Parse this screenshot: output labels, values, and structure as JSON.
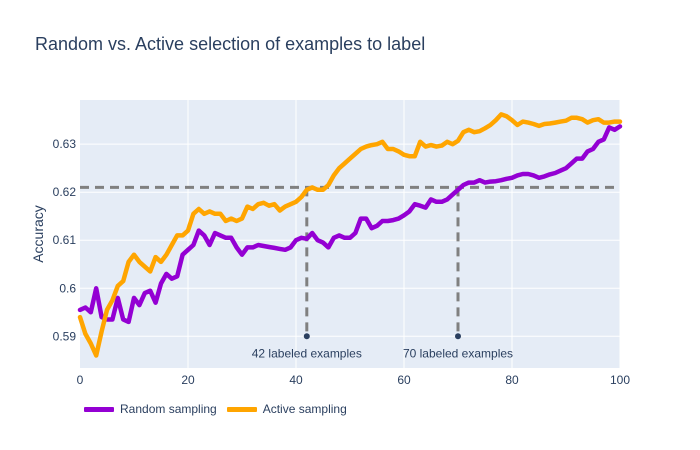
{
  "chart_data": {
    "type": "line",
    "title": "Random vs. Active selection of examples to label",
    "xlabel": "",
    "ylabel": "Accuracy",
    "xlim": [
      0,
      100
    ],
    "ylim": [
      0.5834,
      0.6392
    ],
    "x_ticks": [
      0,
      20,
      40,
      60,
      80,
      100
    ],
    "y_ticks": [
      0.59,
      0.6,
      0.61,
      0.62,
      0.63
    ],
    "y_tick_labels": [
      "0.59",
      "0.6",
      "0.61",
      "0.62",
      "0.63"
    ],
    "grid": true,
    "legend_position": "bottom-left",
    "series": [
      {
        "name": "Random sampling",
        "color": "#9400d3",
        "x": [
          0,
          1,
          2,
          3,
          4,
          5,
          6,
          7,
          8,
          9,
          10,
          11,
          12,
          13,
          14,
          15,
          16,
          17,
          18,
          19,
          20,
          21,
          22,
          23,
          24,
          25,
          26,
          27,
          28,
          29,
          30,
          31,
          32,
          33,
          34,
          35,
          36,
          37,
          38,
          39,
          40,
          41,
          42,
          43,
          44,
          45,
          46,
          47,
          48,
          49,
          50,
          51,
          52,
          53,
          54,
          55,
          56,
          57,
          58,
          59,
          60,
          61,
          62,
          63,
          64,
          65,
          66,
          67,
          68,
          69,
          70,
          71,
          72,
          73,
          74,
          75,
          76,
          77,
          78,
          79,
          80,
          81,
          82,
          83,
          84,
          85,
          86,
          87,
          88,
          89,
          90,
          91,
          92,
          93,
          94,
          95,
          96,
          97,
          98,
          99,
          100
        ],
        "y": [
          0.5955,
          0.596,
          0.595,
          0.6,
          0.594,
          0.5935,
          0.5935,
          0.598,
          0.5935,
          0.593,
          0.598,
          0.5965,
          0.599,
          0.5995,
          0.597,
          0.601,
          0.603,
          0.602,
          0.6025,
          0.607,
          0.608,
          0.609,
          0.612,
          0.611,
          0.609,
          0.6115,
          0.611,
          0.6105,
          0.6105,
          0.6085,
          0.607,
          0.6085,
          0.6085,
          0.609,
          0.6088,
          0.6086,
          0.6084,
          0.6082,
          0.608,
          0.6085,
          0.61,
          0.6105,
          0.6103,
          0.6115,
          0.61,
          0.6095,
          0.6085,
          0.6105,
          0.611,
          0.6105,
          0.6105,
          0.6115,
          0.6145,
          0.6145,
          0.6125,
          0.613,
          0.614,
          0.614,
          0.6142,
          0.6145,
          0.6152,
          0.616,
          0.6175,
          0.6172,
          0.6168,
          0.6185,
          0.618,
          0.618,
          0.6185,
          0.6195,
          0.6205,
          0.6215,
          0.622,
          0.622,
          0.6225,
          0.622,
          0.6222,
          0.6223,
          0.6225,
          0.6228,
          0.623,
          0.6235,
          0.6238,
          0.6238,
          0.6235,
          0.623,
          0.6233,
          0.6237,
          0.624,
          0.6245,
          0.625,
          0.626,
          0.627,
          0.627,
          0.6285,
          0.629,
          0.6305,
          0.631,
          0.6335,
          0.633,
          0.6337
        ]
      },
      {
        "name": "Active sampling",
        "color": "#ffa500",
        "x": [
          0,
          1,
          2,
          3,
          4,
          5,
          6,
          7,
          8,
          9,
          10,
          11,
          12,
          13,
          14,
          15,
          16,
          17,
          18,
          19,
          20,
          21,
          22,
          23,
          24,
          25,
          26,
          27,
          28,
          29,
          30,
          31,
          32,
          33,
          34,
          35,
          36,
          37,
          38,
          39,
          40,
          41,
          42,
          43,
          44,
          45,
          46,
          47,
          48,
          49,
          50,
          51,
          52,
          53,
          54,
          55,
          56,
          57,
          58,
          59,
          60,
          61,
          62,
          63,
          64,
          65,
          66,
          67,
          68,
          69,
          70,
          71,
          72,
          73,
          74,
          75,
          76,
          77,
          78,
          79,
          80,
          81,
          82,
          83,
          84,
          85,
          86,
          87,
          88,
          89,
          90,
          91,
          92,
          93,
          94,
          95,
          96,
          97,
          98,
          99,
          100
        ],
        "y": [
          0.594,
          0.5905,
          0.5885,
          0.586,
          0.591,
          0.5955,
          0.5975,
          0.6005,
          0.6015,
          0.6055,
          0.607,
          0.6055,
          0.6045,
          0.6035,
          0.6065,
          0.6055,
          0.607,
          0.609,
          0.611,
          0.611,
          0.612,
          0.6155,
          0.6165,
          0.6155,
          0.616,
          0.6155,
          0.6155,
          0.614,
          0.6145,
          0.614,
          0.6145,
          0.617,
          0.6165,
          0.6175,
          0.6178,
          0.6172,
          0.6175,
          0.6162,
          0.617,
          0.6175,
          0.618,
          0.619,
          0.6205,
          0.621,
          0.6205,
          0.6205,
          0.6215,
          0.6235,
          0.625,
          0.626,
          0.627,
          0.628,
          0.629,
          0.6295,
          0.6298,
          0.63,
          0.6305,
          0.629,
          0.629,
          0.6285,
          0.6278,
          0.6275,
          0.6275,
          0.6305,
          0.6295,
          0.6298,
          0.6295,
          0.6297,
          0.6305,
          0.63,
          0.6307,
          0.6325,
          0.633,
          0.6325,
          0.6327,
          0.6333,
          0.634,
          0.635,
          0.6362,
          0.6358,
          0.635,
          0.634,
          0.6347,
          0.6345,
          0.6342,
          0.6338,
          0.6342,
          0.6343,
          0.6345,
          0.6347,
          0.6349,
          0.6355,
          0.6355,
          0.6352,
          0.6345,
          0.635,
          0.6352,
          0.6345,
          0.6345,
          0.6347,
          0.6347
        ]
      }
    ],
    "threshold_y": 0.621,
    "markers": [
      {
        "x": 42,
        "y": 0.59,
        "label": "42 labeled examples"
      },
      {
        "x": 70,
        "y": 0.59,
        "label": "70 labeled examples"
      }
    ],
    "colors": {
      "plot_bg": "#e5ecf6",
      "grid": "#ffffff",
      "reference_line": "#808080",
      "marker": "#2a3f5f"
    }
  }
}
